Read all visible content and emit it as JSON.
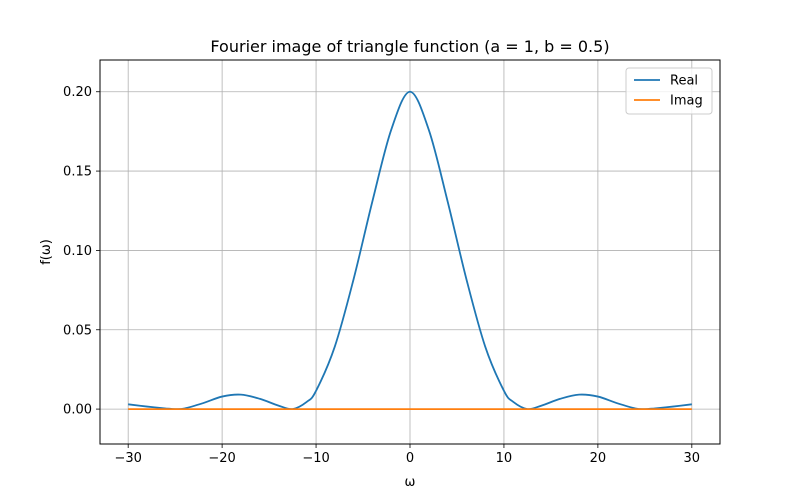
{
  "chart_data": {
    "type": "line",
    "title": "Fourier image of triangle function (a = 1, b = 0.5)",
    "xlabel": "ω",
    "ylabel": "f(ω)",
    "xlim": [
      -33,
      33
    ],
    "ylim": [
      -0.022,
      0.22
    ],
    "grid": true,
    "legend_position": "top-right",
    "xticks": [
      -30,
      -20,
      -10,
      0,
      10,
      20,
      30
    ],
    "xtick_labels": [
      "−30",
      "−20",
      "−10",
      "0",
      "10",
      "20",
      "30"
    ],
    "yticks": [
      0.0,
      0.05,
      0.1,
      0.15,
      0.2
    ],
    "ytick_labels": [
      "0.00",
      "0.05",
      "0.10",
      "0.15",
      "0.20"
    ],
    "series": [
      {
        "name": "Real",
        "color": "#1f77b4",
        "x": [
          -30,
          -28,
          -26,
          -25,
          -24,
          -22,
          -20,
          -18,
          -16,
          -14,
          -12.5,
          -11,
          -10,
          -8,
          -6,
          -4,
          -2,
          0,
          2,
          4,
          6,
          8,
          10,
          11,
          12.5,
          14,
          16,
          18,
          20,
          22,
          24,
          25,
          26,
          28,
          30
        ],
        "values": [
          0.003,
          0.0016,
          0.0004,
          0.0,
          0.0004,
          0.0038,
          0.0079,
          0.0091,
          0.0065,
          0.0022,
          0.0,
          0.0045,
          0.0115,
          0.0395,
          0.082,
          0.131,
          0.176,
          0.2,
          0.176,
          0.131,
          0.082,
          0.0395,
          0.0115,
          0.0045,
          0.0,
          0.0022,
          0.0065,
          0.0091,
          0.0079,
          0.0038,
          0.0004,
          0.0,
          0.0004,
          0.0016,
          0.003
        ]
      },
      {
        "name": "Imag",
        "color": "#ff7f0e",
        "x": [
          -30,
          30
        ],
        "values": [
          0.0,
          0.0
        ]
      }
    ]
  }
}
